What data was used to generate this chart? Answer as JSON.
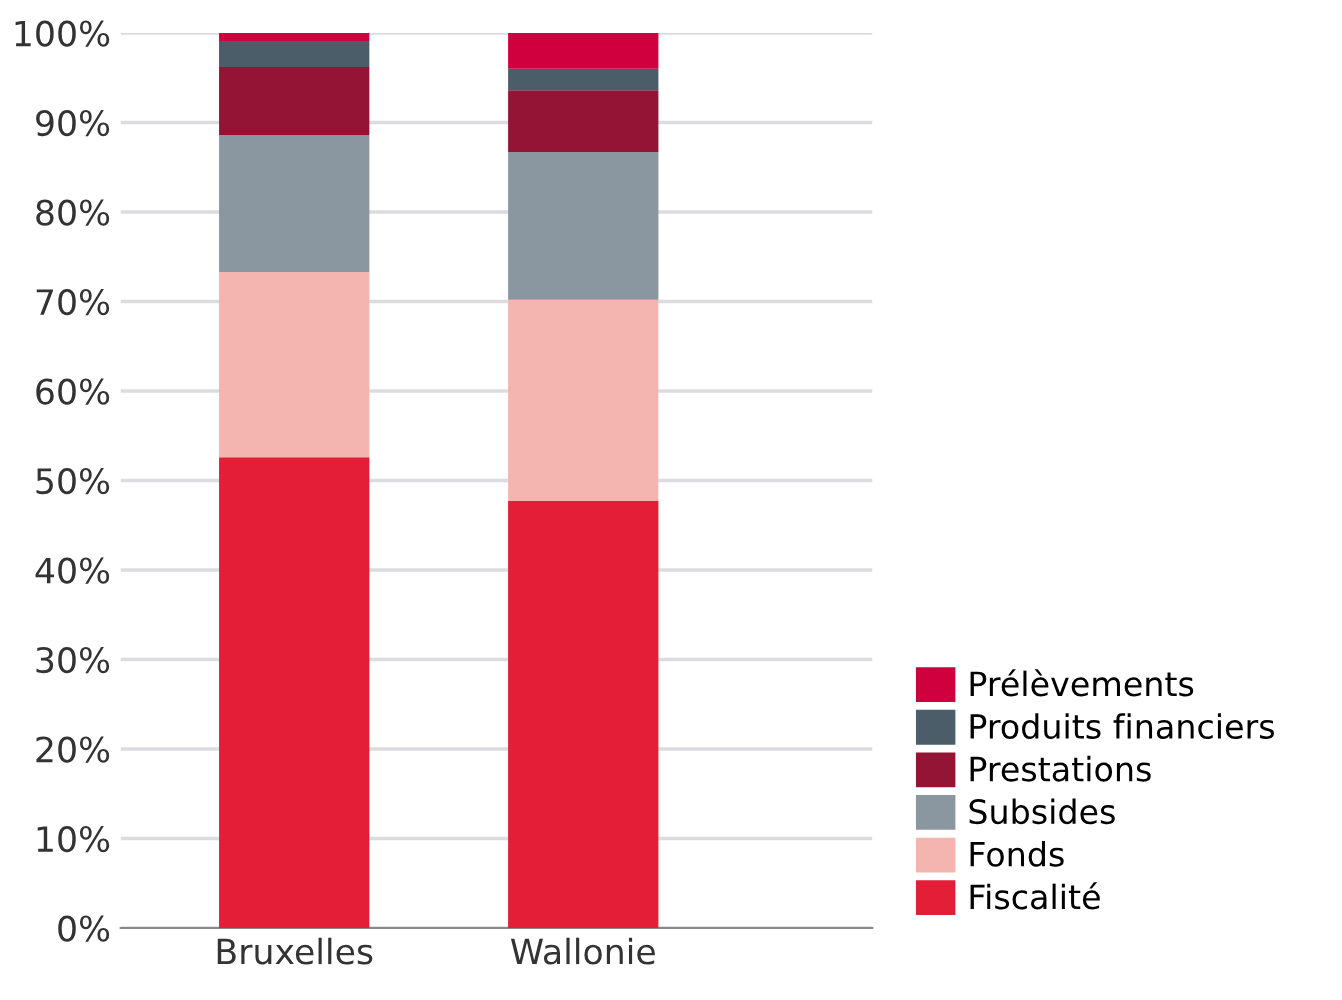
{
  "chart_data": {
    "type": "bar",
    "stacked": true,
    "categories": [
      "Bruxelles",
      "Wallonie"
    ],
    "series": [
      {
        "name": "Fiscalité",
        "color": "#e31e36",
        "values": [
          52.6,
          47.7
        ]
      },
      {
        "name": "Fonds",
        "color": "#f4b5b0",
        "values": [
          20.7,
          22.5
        ]
      },
      {
        "name": "Subsides",
        "color": "#8a97a0",
        "values": [
          15.3,
          16.5
        ]
      },
      {
        "name": "Prestations",
        "color": "#941435",
        "values": [
          7.6,
          6.9
        ]
      },
      {
        "name": "Produits financiers",
        "color": "#4b5d69",
        "values": [
          2.9,
          2.4
        ]
      },
      {
        "name": "Prélèvements",
        "color": "#d0003f",
        "values": [
          0.9,
          4.0
        ]
      }
    ],
    "ylim": [
      0,
      100
    ],
    "yticks": [
      {
        "value": 0,
        "label": "0%"
      },
      {
        "value": 10,
        "label": "10%"
      },
      {
        "value": 20,
        "label": "20%"
      },
      {
        "value": 30,
        "label": "30%"
      },
      {
        "value": 40,
        "label": "40%"
      },
      {
        "value": 50,
        "label": "50%"
      },
      {
        "value": 60,
        "label": "60%"
      },
      {
        "value": 70,
        "label": "70%"
      },
      {
        "value": 80,
        "label": "80%"
      },
      {
        "value": 90,
        "label": "90%"
      },
      {
        "value": 100,
        "label": "100%"
      }
    ],
    "grid": "y",
    "legend": "bottom right"
  }
}
